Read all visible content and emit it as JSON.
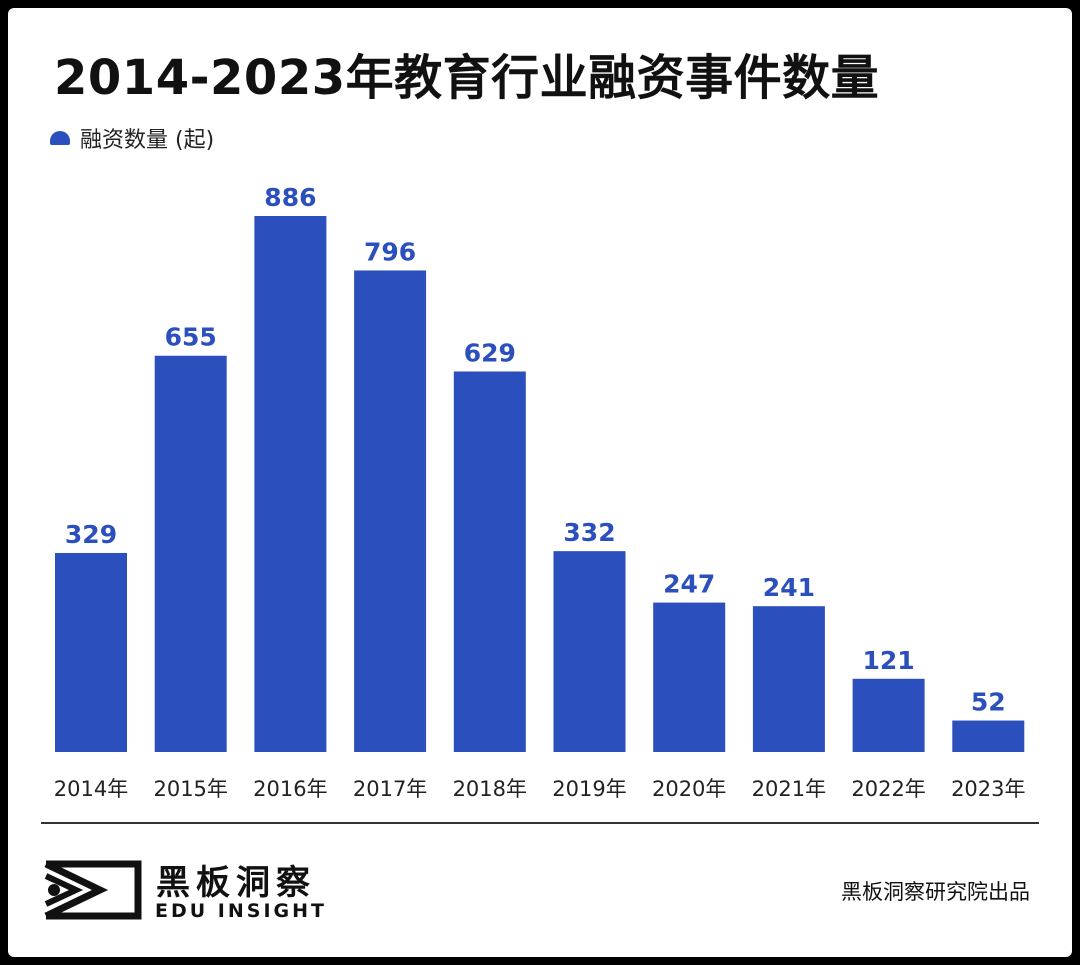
{
  "title": "2014-2023年教育行业融资事件数量",
  "legend": {
    "label": "融资数量 (起)",
    "color": "#2b4fbc"
  },
  "chart_data": {
    "type": "bar",
    "title": "2014-2023年教育行业融资事件数量",
    "categories": [
      "2014年",
      "2015年",
      "2016年",
      "2017年",
      "2018年",
      "2019年",
      "2020年",
      "2021年",
      "2022年",
      "2023年"
    ],
    "series": [
      {
        "name": "融资数量 (起)",
        "values": [
          329,
          655,
          886,
          796,
          629,
          332,
          247,
          241,
          121,
          52
        ]
      }
    ],
    "xlabel": "",
    "ylabel": "",
    "ylim": [
      0,
      886
    ],
    "grid": false,
    "legend_position": "top-left",
    "bar_color": "#2b4fbc",
    "value_label_color": "#2b4fbc"
  },
  "brand": {
    "name_cn": "黑板洞察",
    "name_en": "EDU INSIGHT"
  },
  "credit": "黑板洞察研究院出品"
}
